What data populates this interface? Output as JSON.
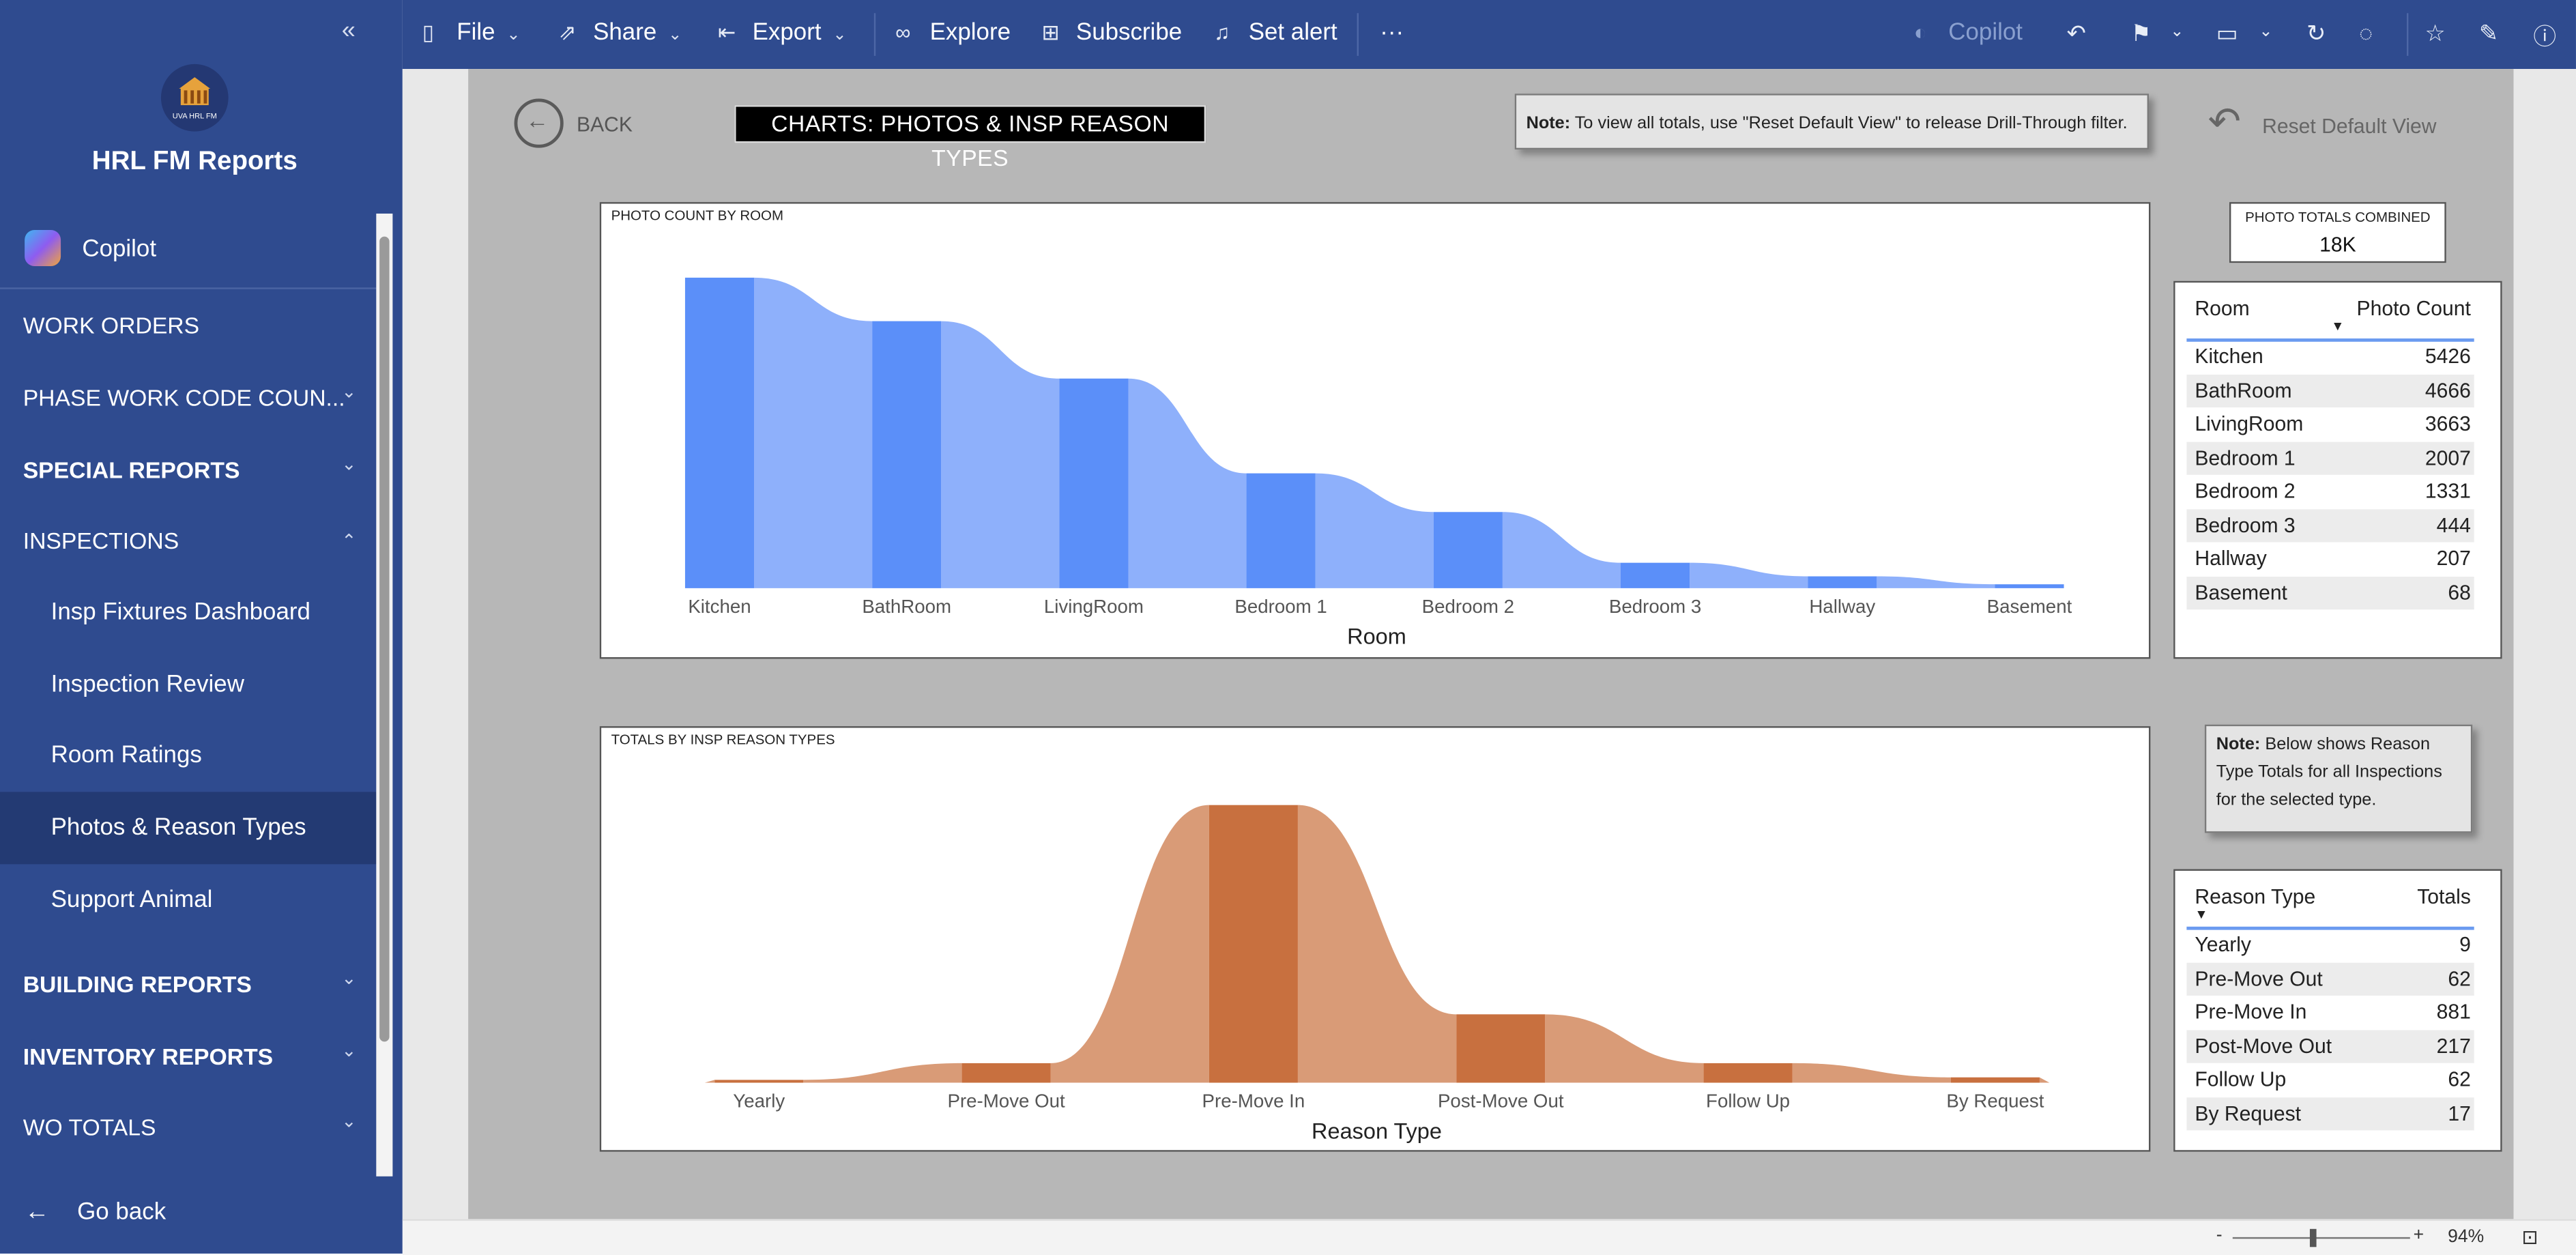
{
  "sidebar": {
    "app_title": "HRL FM Reports",
    "logo_text": "UVA HRL FM",
    "copilot_label": "Copilot",
    "items": [
      {
        "label": "WORK ORDERS",
        "chevron": ""
      },
      {
        "label": "PHASE WORK CODE COUN...",
        "chevron": "⌄"
      },
      {
        "label": "SPECIAL REPORTS",
        "chevron": "⌄"
      },
      {
        "label": "INSPECTIONS",
        "chevron": "⌃"
      },
      {
        "label": "Insp Fixtures Dashboard"
      },
      {
        "label": "Inspection Review"
      },
      {
        "label": "Room Ratings"
      },
      {
        "label": "Photos & Reason Types"
      },
      {
        "label": "Support Animal"
      },
      {
        "label": "BUILDING REPORTS",
        "chevron": "⌄"
      },
      {
        "label": "INVENTORY REPORTS",
        "chevron": "⌄"
      },
      {
        "label": "WO TOTALS",
        "chevron": "⌄"
      }
    ],
    "go_back": "Go back"
  },
  "toolbar": {
    "file": "File",
    "share": "Share",
    "export": "Export",
    "explore": "Explore",
    "subscribe": "Subscribe",
    "set_alert": "Set alert",
    "more": "···",
    "copilot": "Copilot"
  },
  "report": {
    "back_label": "BACK",
    "title": "CHARTS: PHOTOS & INSP REASON TYPES",
    "note_top": {
      "bold": "Note:",
      "text": " To view all totals, use \"Reset Default View\" to release Drill-Through filter."
    },
    "reset_label": "Reset Default View",
    "kpi": {
      "label": "PHOTO TOTALS COMBINED",
      "value": "18K"
    },
    "photo_table": {
      "col1": "Room",
      "col2": "Photo Count",
      "rows": [
        {
          "name": "Kitchen",
          "value": "5426"
        },
        {
          "name": "BathRoom",
          "value": "4666"
        },
        {
          "name": "LivingRoom",
          "value": "3663"
        },
        {
          "name": "Bedroom 1",
          "value": "2007"
        },
        {
          "name": "Bedroom 2",
          "value": "1331"
        },
        {
          "name": "Bedroom 3",
          "value": "444"
        },
        {
          "name": "Hallway",
          "value": "207"
        },
        {
          "name": "Basement",
          "value": "68"
        }
      ]
    },
    "note_mid": {
      "bold": "Note:",
      "text": " Below shows Reason Type Totals for all Inspections for the selected type."
    },
    "reason_table": {
      "col1": "Reason Type",
      "col2": "Totals",
      "rows": [
        {
          "name": "Yearly",
          "value": "9"
        },
        {
          "name": "Pre-Move Out",
          "value": "62"
        },
        {
          "name": "Pre-Move In",
          "value": "881"
        },
        {
          "name": "Post-Move Out",
          "value": "217"
        },
        {
          "name": "Follow Up",
          "value": "62"
        },
        {
          "name": "By Request",
          "value": "17"
        }
      ]
    }
  },
  "statusbar": {
    "zoom_minus": "-",
    "zoom_plus": "+",
    "zoom": "94%"
  },
  "colors": {
    "nav_bg": "#2f4b8f",
    "nav_active": "#233a73",
    "photo_bar": "#5b8ff9",
    "photo_ribbon": "#8eb0fb",
    "reason_bar": "#c8703f",
    "reason_ribbon": "#d99b77"
  },
  "chart_data": [
    {
      "type": "bar",
      "title": "PHOTO COUNT BY ROOM",
      "xlabel": "Room",
      "ylabel": "",
      "categories": [
        "Kitchen",
        "BathRoom",
        "LivingRoom",
        "Bedroom 1",
        "Bedroom 2",
        "Bedroom 3",
        "Hallway",
        "Basement"
      ],
      "values": [
        5426,
        4666,
        3663,
        2007,
        1331,
        444,
        207,
        68
      ],
      "ylim": [
        0,
        5426
      ],
      "grid": false
    },
    {
      "type": "bar",
      "title": "TOTALS BY INSP REASON TYPES",
      "xlabel": "Reason Type",
      "ylabel": "",
      "categories": [
        "Yearly",
        "Pre-Move Out",
        "Pre-Move In",
        "Post-Move Out",
        "Follow Up",
        "By Request"
      ],
      "values": [
        9,
        62,
        881,
        217,
        62,
        17
      ],
      "ylim": [
        0,
        881
      ],
      "grid": false
    }
  ]
}
